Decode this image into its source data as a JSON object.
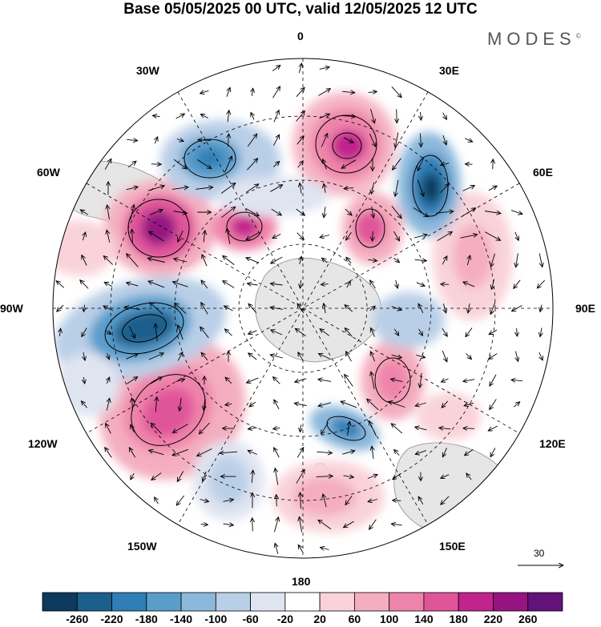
{
  "title": "Base 05/05/2025 00 UTC, valid 12/05/2025 12 UTC",
  "logo": "MODES",
  "logo_mark": "©",
  "lon_labels": {
    "n0": "0",
    "e30": "30E",
    "e60": "60E",
    "e90": "90E",
    "e120": "120E",
    "e150": "150E",
    "s180": "180",
    "w150": "150W",
    "w120": "120W",
    "w90": "90W",
    "w60": "60W",
    "w30": "30W"
  },
  "reference_vector": "30",
  "colorbar": {
    "colors": [
      "#0d3a5c",
      "#1b5f8c",
      "#2f7eb5",
      "#5a9dcb",
      "#8bb8db",
      "#b9cfe7",
      "#dfe4f1",
      "#ffffff",
      "#f9d3d9",
      "#f4aec0",
      "#ef84aa",
      "#e0549a",
      "#c2248d",
      "#951482",
      "#63127a"
    ],
    "ticks": [
      "-260",
      "-220",
      "-180",
      "-140",
      "-100",
      "-60",
      "-20",
      "20",
      "60",
      "100",
      "140",
      "180",
      "220",
      "260"
    ]
  },
  "colors": {
    "land": "#e6e6e6",
    "coast": "#888888",
    "grid": "#000000"
  }
}
